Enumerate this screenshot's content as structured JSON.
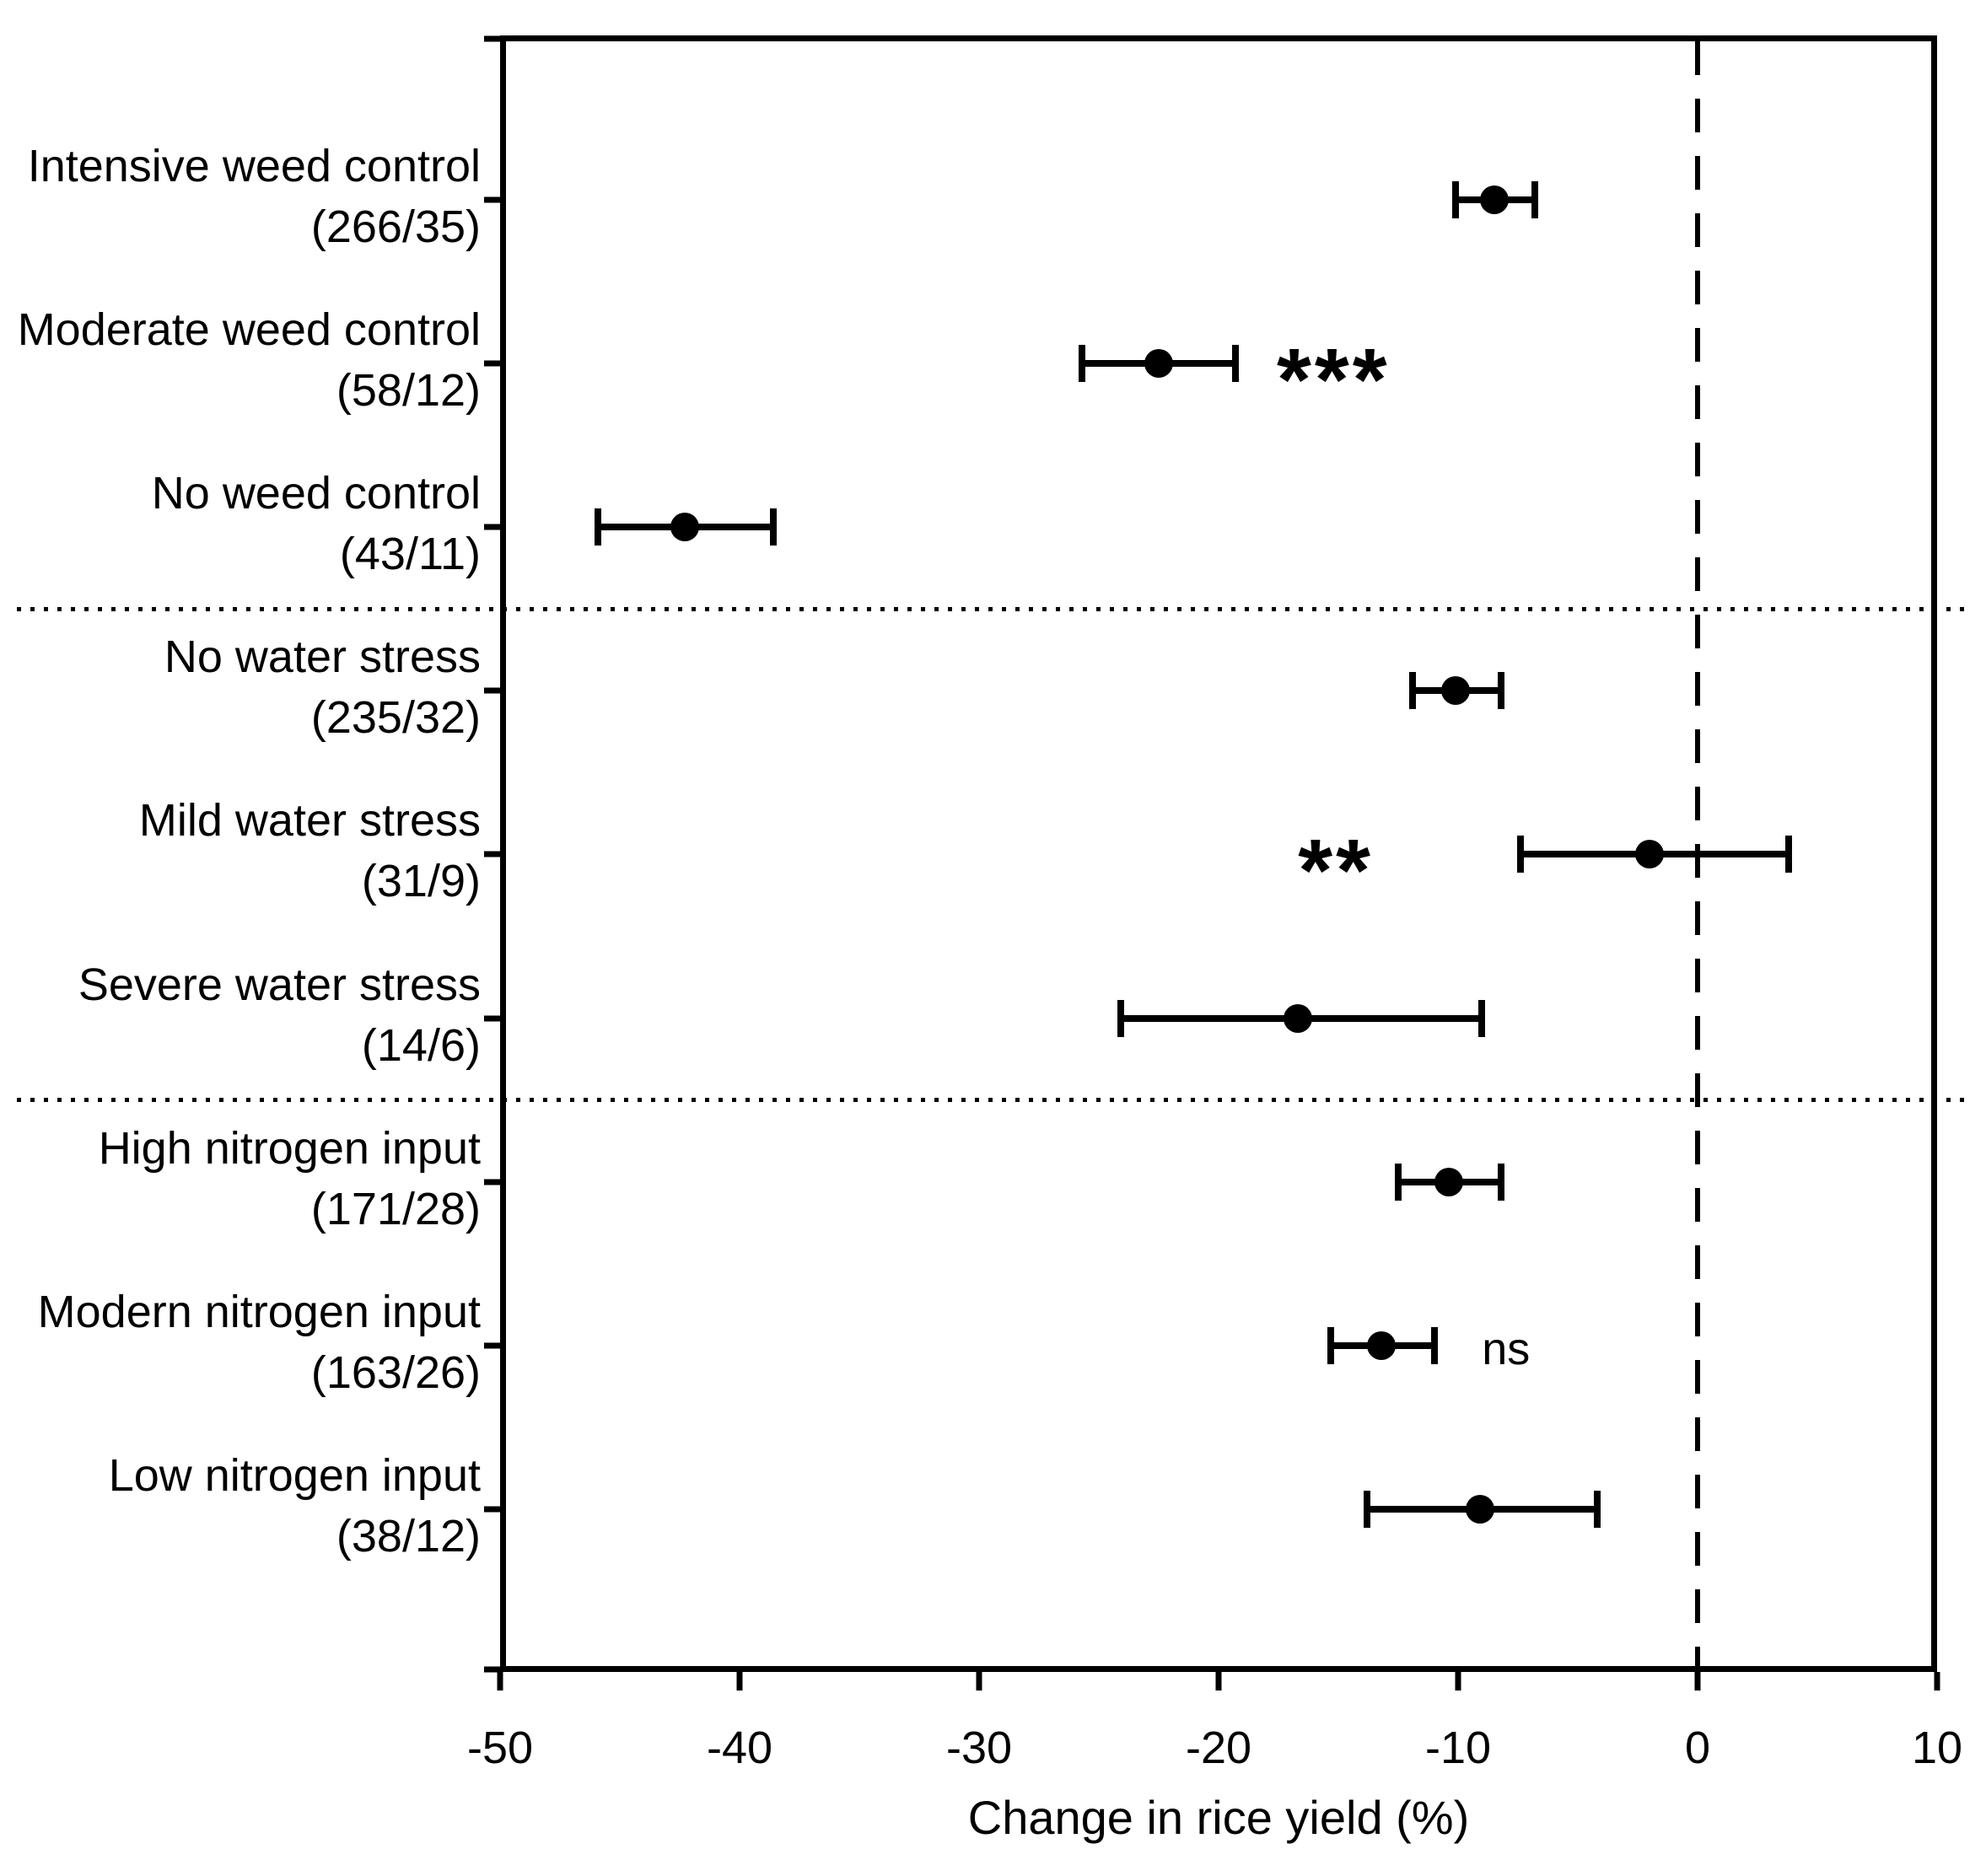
{
  "figure": {
    "background_color": "#ffffff",
    "ink_color": "#000000"
  },
  "chart_data": {
    "type": "scatter",
    "subtype": "horizontal-forest-plot-with-error-bars",
    "title": "",
    "xlabel": "Change in rice yield (%)",
    "ylabel": "",
    "xlim": [
      -50,
      10
    ],
    "xticks": [
      -50,
      -40,
      -30,
      -20,
      -10,
      0,
      10
    ],
    "reference_line_x": 0,
    "reference_line_style": "dashed",
    "group_separator_style": "dotted",
    "grid": false,
    "legend": null,
    "categories": [
      {
        "label": "Intensive weed control",
        "n_label": "(266/35)",
        "mean": -8.5,
        "ci": [
          -10.1,
          -6.8
        ],
        "group": 0,
        "sig": null,
        "sig_x": null
      },
      {
        "label": "Moderate weed control",
        "n_label": "(58/12)",
        "mean": -22.5,
        "ci": [
          -25.7,
          -19.3
        ],
        "group": 0,
        "sig": "***",
        "sig_x": -15.2
      },
      {
        "label": "No weed control",
        "n_label": "(43/11)",
        "mean": -42.3,
        "ci": [
          -45.9,
          -38.6
        ],
        "group": 0,
        "sig": null,
        "sig_x": null
      },
      {
        "label": "No water stress",
        "n_label": "(235/32)",
        "mean": -10.1,
        "ci": [
          -11.9,
          -8.2
        ],
        "group": 1,
        "sig": null,
        "sig_x": null
      },
      {
        "label": "Mild water stress",
        "n_label": "(31/9)",
        "mean": -2.0,
        "ci": [
          -7.4,
          3.8
        ],
        "group": 1,
        "sig": "**",
        "sig_x": -15.1
      },
      {
        "label": "Severe water stress",
        "n_label": "(14/6)",
        "mean": -16.7,
        "ci": [
          -24.1,
          -9.0
        ],
        "group": 1,
        "sig": null,
        "sig_x": null
      },
      {
        "label": "High nitrogen input",
        "n_label": "(171/28)",
        "mean": -10.4,
        "ci": [
          -12.5,
          -8.2
        ],
        "group": 2,
        "sig": null,
        "sig_x": null
      },
      {
        "label": "Modern nitrogen input",
        "n_label": "(163/26)",
        "mean": -13.2,
        "ci": [
          -15.3,
          -11.0
        ],
        "group": 2,
        "sig": "ns",
        "sig_x": -8.0
      },
      {
        "label": "Low nitrogen input",
        "n_label": "(38/12)",
        "mean": -9.1,
        "ci": [
          -13.8,
          -4.2
        ],
        "group": 2,
        "sig": null,
        "sig_x": null
      }
    ]
  }
}
